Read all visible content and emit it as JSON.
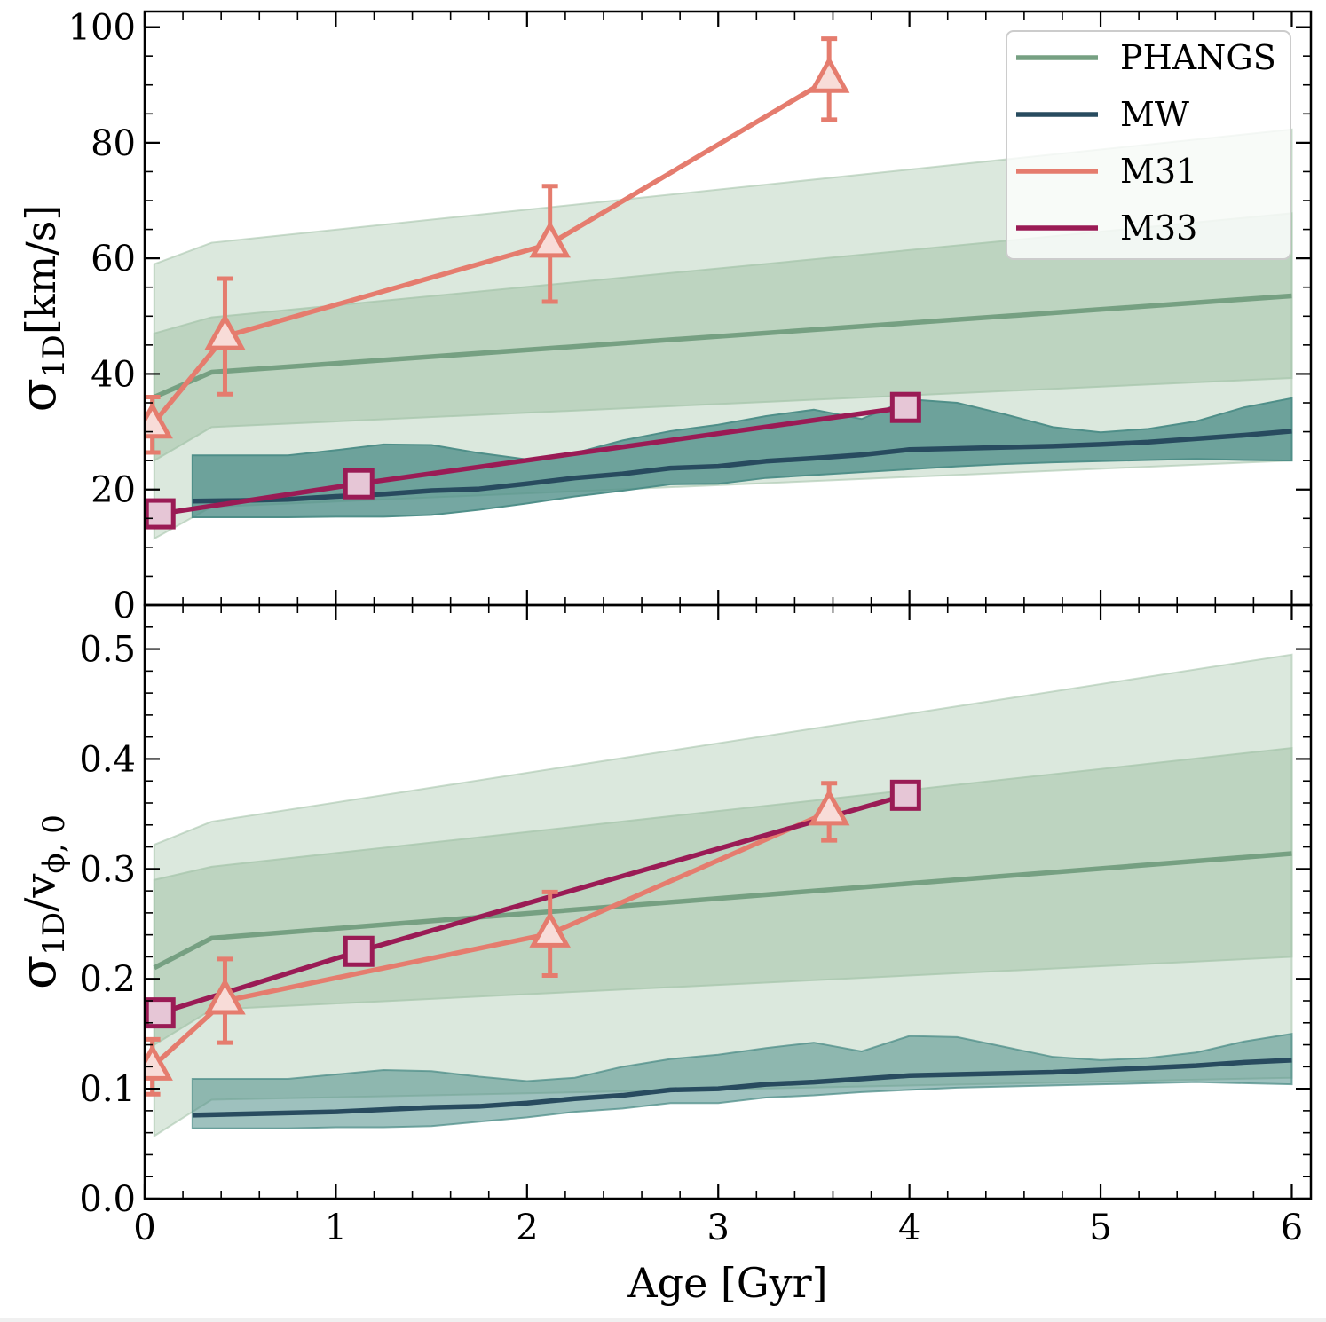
{
  "chart_data": [
    {
      "type": "line",
      "panel": "top",
      "ylabel": "σ_1D [km/s]",
      "ylabel_main": "σ",
      "ylabel_sub": "1D",
      "ylabel_rest": "[km/s]",
      "xlabel": "",
      "xlim": [
        0,
        6.1
      ],
      "ylim": [
        0,
        102.7
      ],
      "yticks": [
        0,
        20,
        40,
        60,
        80,
        100
      ],
      "ytick_labels": [
        "0",
        "20",
        "40",
        "60",
        "80",
        "100"
      ],
      "yminor_step": 5,
      "legend": {
        "placement": "top-right",
        "entries": [
          {
            "label": "PHANGS",
            "color": "#76a082"
          },
          {
            "label": "MW",
            "color": "#284b5f"
          },
          {
            "label": "M31",
            "color": "#e57c6e"
          },
          {
            "label": "M33",
            "color": "#9a1b55"
          }
        ]
      },
      "bands": [
        {
          "name": "PHANGS-outer",
          "color": "#a9c7ae",
          "opacity": 0.42,
          "x": [
            0.05,
            0.35,
            6.0
          ],
          "lower": [
            11.5,
            17.0,
            25.0
          ],
          "upper": [
            59.0,
            62.7,
            82.3
          ]
        },
        {
          "name": "PHANGS-inner",
          "color": "#a9c7ae",
          "opacity": 0.6,
          "x": [
            0.05,
            0.35,
            6.0
          ],
          "lower": [
            25.0,
            30.8,
            39.3
          ],
          "upper": [
            47.0,
            49.8,
            67.8
          ]
        },
        {
          "name": "MW-band",
          "color": "#4e8e88",
          "opacity": 0.78,
          "x": [
            0.25,
            0.5,
            0.75,
            1.0,
            1.25,
            1.5,
            1.75,
            2.0,
            2.25,
            2.5,
            2.75,
            3.0,
            3.25,
            3.5,
            3.75,
            4.0,
            4.25,
            4.5,
            4.75,
            5.0,
            5.25,
            5.5,
            5.75,
            6.0
          ],
          "lower": [
            15.2,
            15.2,
            15.2,
            15.3,
            15.3,
            15.6,
            16.5,
            17.6,
            18.8,
            19.8,
            20.9,
            21.0,
            22.0,
            22.5,
            23.0,
            23.5,
            24.0,
            24.4,
            24.7,
            24.9,
            25.1,
            25.3,
            25.1,
            25.0
          ],
          "upper": [
            25.9,
            25.9,
            25.9,
            26.8,
            27.8,
            27.7,
            26.3,
            25.2,
            26.3,
            28.5,
            30.1,
            31.2,
            32.7,
            33.8,
            32.2,
            35.6,
            35.0,
            33.0,
            30.8,
            29.9,
            30.5,
            31.8,
            34.2,
            35.8
          ]
        }
      ],
      "series": [
        {
          "name": "PHANGS",
          "color": "#76a082",
          "x": [
            0.05,
            0.35,
            6.0
          ],
          "y": [
            36.0,
            40.3,
            53.5
          ]
        },
        {
          "name": "MW",
          "color": "#284b5f",
          "x": [
            0.25,
            0.5,
            0.75,
            1.0,
            1.25,
            1.5,
            1.75,
            2.0,
            2.25,
            2.5,
            2.75,
            3.0,
            3.25,
            3.5,
            3.75,
            4.0,
            4.25,
            4.5,
            4.75,
            5.0,
            5.25,
            5.5,
            5.75,
            6.0
          ],
          "y": [
            18.0,
            18.1,
            18.3,
            18.8,
            19.2,
            19.8,
            20.1,
            21.0,
            22.0,
            22.7,
            23.7,
            24.0,
            24.9,
            25.4,
            26.0,
            26.9,
            27.1,
            27.3,
            27.5,
            27.8,
            28.2,
            28.8,
            29.4,
            30.1
          ]
        },
        {
          "name": "M31",
          "color": "#e57c6e",
          "marker": "triangle",
          "marker_fill": "#f8dcd8",
          "x": [
            0.04,
            0.42,
            2.12,
            3.58
          ],
          "y": [
            31.2,
            46.5,
            62.5,
            91.0
          ],
          "yerr": [
            4.8,
            10.0,
            10.0,
            7.0
          ]
        },
        {
          "name": "M33",
          "color": "#9a1b55",
          "marker": "square",
          "marker_fill": "#e6c6d6",
          "x": [
            0.08,
            1.12,
            3.98
          ],
          "y": [
            15.8,
            21.0,
            34.2
          ]
        }
      ]
    },
    {
      "type": "line",
      "panel": "bottom",
      "ylabel": "σ_1D / v_φ,0",
      "ylabel_main": "σ",
      "ylabel_sub": "1D",
      "ylabel_mid": "/v",
      "ylabel_sub2": "ϕ, 0",
      "xlabel": "Age [Gyr]",
      "xlim": [
        0,
        6.1
      ],
      "ylim": [
        0,
        0.54
      ],
      "xticks": [
        0,
        1,
        2,
        3,
        4,
        5,
        6
      ],
      "xtick_labels": [
        "0",
        "1",
        "2",
        "3",
        "4",
        "5",
        "6"
      ],
      "xminor_step": 0.2,
      "yticks": [
        0.0,
        0.1,
        0.2,
        0.3,
        0.4,
        0.5
      ],
      "ytick_labels": [
        "0.0",
        "0.1",
        "0.2",
        "0.3",
        "0.4",
        "0.5"
      ],
      "yminor_step": 0.02,
      "bands": [
        {
          "name": "PHANGS-outer",
          "color": "#a9c7ae",
          "opacity": 0.42,
          "x": [
            0.05,
            0.35,
            6.0
          ],
          "lower": [
            0.057,
            0.09,
            0.11
          ],
          "upper": [
            0.322,
            0.343,
            0.495
          ]
        },
        {
          "name": "PHANGS-inner",
          "color": "#a9c7ae",
          "opacity": 0.6,
          "x": [
            0.05,
            0.35,
            6.0
          ],
          "lower": [
            0.14,
            0.172,
            0.22
          ],
          "upper": [
            0.29,
            0.302,
            0.41
          ]
        },
        {
          "name": "MW-band",
          "color": "#4e8e88",
          "opacity": 0.55,
          "x": [
            0.25,
            0.5,
            0.75,
            1.0,
            1.25,
            1.5,
            1.75,
            2.0,
            2.25,
            2.5,
            2.75,
            3.0,
            3.25,
            3.5,
            3.75,
            4.0,
            4.25,
            4.5,
            4.75,
            5.0,
            5.25,
            5.5,
            5.75,
            6.0
          ],
          "lower": [
            0.064,
            0.064,
            0.064,
            0.065,
            0.065,
            0.066,
            0.07,
            0.074,
            0.079,
            0.082,
            0.087,
            0.087,
            0.092,
            0.094,
            0.097,
            0.099,
            0.101,
            0.102,
            0.103,
            0.104,
            0.105,
            0.106,
            0.105,
            0.104
          ],
          "upper": [
            0.109,
            0.109,
            0.109,
            0.113,
            0.117,
            0.116,
            0.111,
            0.107,
            0.11,
            0.12,
            0.127,
            0.131,
            0.137,
            0.142,
            0.134,
            0.148,
            0.147,
            0.138,
            0.129,
            0.126,
            0.128,
            0.133,
            0.143,
            0.15
          ]
        }
      ],
      "series": [
        {
          "name": "PHANGS",
          "color": "#76a082",
          "x": [
            0.05,
            0.35,
            6.0
          ],
          "y": [
            0.21,
            0.237,
            0.314
          ]
        },
        {
          "name": "MW",
          "color": "#284b5f",
          "x": [
            0.25,
            0.5,
            0.75,
            1.0,
            1.25,
            1.5,
            1.75,
            2.0,
            2.25,
            2.5,
            2.75,
            3.0,
            3.25,
            3.5,
            3.75,
            4.0,
            4.25,
            4.5,
            4.75,
            5.0,
            5.25,
            5.5,
            5.75,
            6.0
          ],
          "y": [
            0.076,
            0.077,
            0.078,
            0.079,
            0.081,
            0.083,
            0.084,
            0.087,
            0.091,
            0.094,
            0.099,
            0.1,
            0.104,
            0.106,
            0.109,
            0.112,
            0.113,
            0.114,
            0.115,
            0.117,
            0.119,
            0.121,
            0.124,
            0.126
          ]
        },
        {
          "name": "M31",
          "color": "#e57c6e",
          "marker": "triangle",
          "marker_fill": "#f8dcd8",
          "x": [
            0.04,
            0.42,
            2.12,
            3.58
          ],
          "y": [
            0.12,
            0.18,
            0.241,
            0.352
          ],
          "yerr": [
            0.025,
            0.038,
            0.038,
            0.026
          ]
        },
        {
          "name": "M33",
          "color": "#9a1b55",
          "marker": "square",
          "marker_fill": "#e6c6d6",
          "x": [
            0.08,
            1.12,
            3.98
          ],
          "y": [
            0.169,
            0.225,
            0.367
          ]
        }
      ]
    }
  ]
}
